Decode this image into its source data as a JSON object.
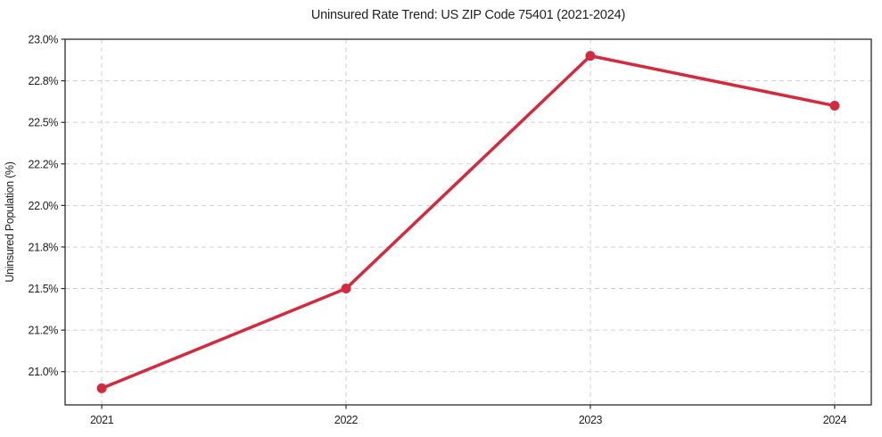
{
  "chart_data": {
    "type": "line",
    "title": "Uninsured Rate Trend: US ZIP Code 75401 (2021-2024)",
    "xlabel": "",
    "ylabel": "Uninsured Population (%)",
    "x": [
      2021,
      2022,
      2023,
      2024
    ],
    "values": [
      20.9,
      21.5,
      22.9,
      22.6
    ],
    "xlim": [
      2020.85,
      2024.15
    ],
    "ylim": [
      20.8,
      23.0
    ],
    "xticks": {
      "values": [
        2021,
        2022,
        2023,
        2024
      ],
      "labels": [
        "2021",
        "2022",
        "2023",
        "2024"
      ]
    },
    "yticks": {
      "values": [
        21.0,
        21.25,
        21.5,
        21.75,
        22.0,
        22.25,
        22.5,
        22.75,
        23.0
      ],
      "labels": [
        "21.0%",
        "21.2%",
        "21.5%",
        "21.8%",
        "22.0%",
        "22.2%",
        "22.5%",
        "22.8%",
        "23.0%"
      ]
    },
    "grid": true,
    "grid_style": "dashed",
    "legend": "none",
    "marker": "circle",
    "colors": {
      "line": "#d42a3d",
      "grid": "#cccccc",
      "axis": "#2a2a2a",
      "text": "#1f1f1f",
      "background": "#ffffff"
    }
  }
}
